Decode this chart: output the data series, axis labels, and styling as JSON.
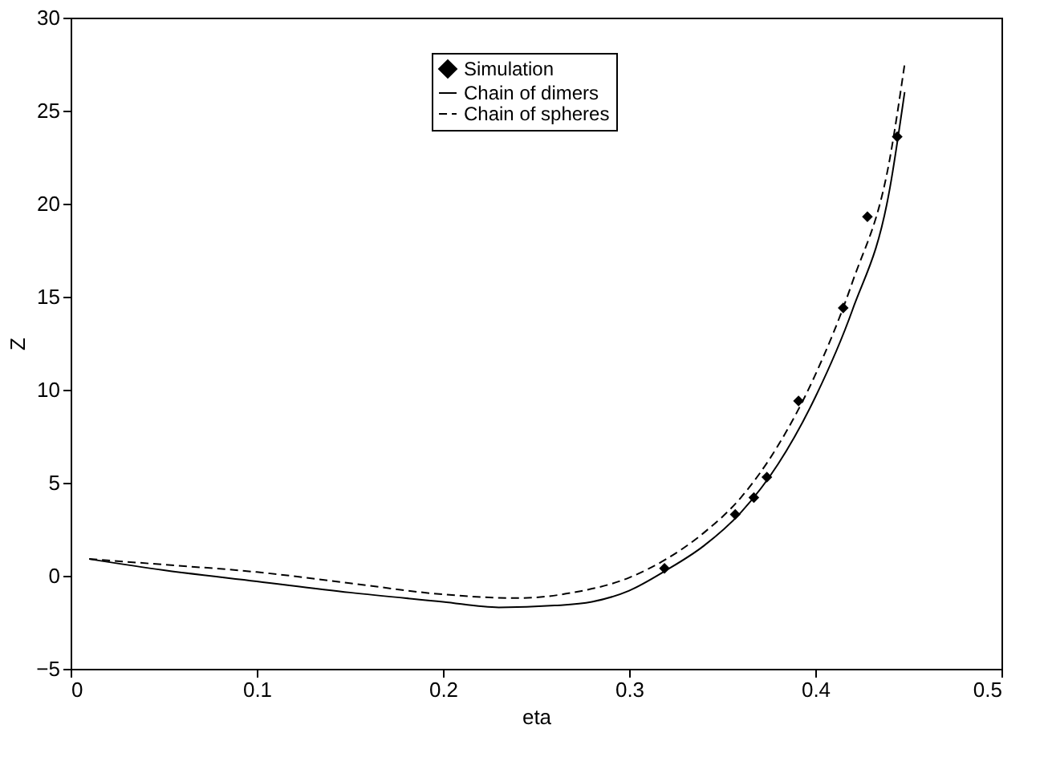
{
  "chart_data": {
    "type": "line",
    "xlabel": "eta",
    "ylabel": "Z",
    "xlim": [
      0,
      0.5
    ],
    "ylim": [
      -5,
      30
    ],
    "xticks": [
      0,
      0.1,
      0.2,
      0.3,
      0.4,
      0.5
    ],
    "yticks": [
      -5,
      0,
      5,
      10,
      15,
      20,
      25,
      30
    ],
    "grid": false,
    "legend": "top",
    "series": [
      {
        "name": "Simulation",
        "type": "scatter",
        "marker": "diamond",
        "color": "#000000",
        "x": [
          0.319,
          0.357,
          0.367,
          0.374,
          0.391,
          0.415,
          0.428,
          0.444
        ],
        "values": [
          0.4,
          3.3,
          4.2,
          5.3,
          9.4,
          14.4,
          19.3,
          23.6
        ]
      },
      {
        "name": "Chain of dimers",
        "line_style": "solid",
        "color": "#000000",
        "x": [
          0.01,
          0.05,
          0.1,
          0.15,
          0.2,
          0.23,
          0.26,
          0.28,
          0.3,
          0.32,
          0.34,
          0.36,
          0.38,
          0.4,
          0.42,
          0.44,
          0.448
        ],
        "values": [
          0.9,
          0.3,
          -0.3,
          -0.9,
          -1.4,
          -1.7,
          -1.6,
          -1.4,
          -0.8,
          0.3,
          1.6,
          3.4,
          6.0,
          9.6,
          14.3,
          20.8,
          26.0
        ]
      },
      {
        "name": "Chain of spheres",
        "line_style": "dashed",
        "color": "#000000",
        "x": [
          0.01,
          0.05,
          0.1,
          0.15,
          0.2,
          0.24,
          0.27,
          0.3,
          0.32,
          0.34,
          0.36,
          0.38,
          0.4,
          0.42,
          0.44,
          0.448
        ],
        "values": [
          0.9,
          0.6,
          0.2,
          -0.4,
          -1.0,
          -1.2,
          -0.9,
          -0.1,
          0.9,
          2.3,
          4.2,
          7.0,
          10.8,
          15.8,
          22.4,
          27.5
        ]
      }
    ]
  }
}
